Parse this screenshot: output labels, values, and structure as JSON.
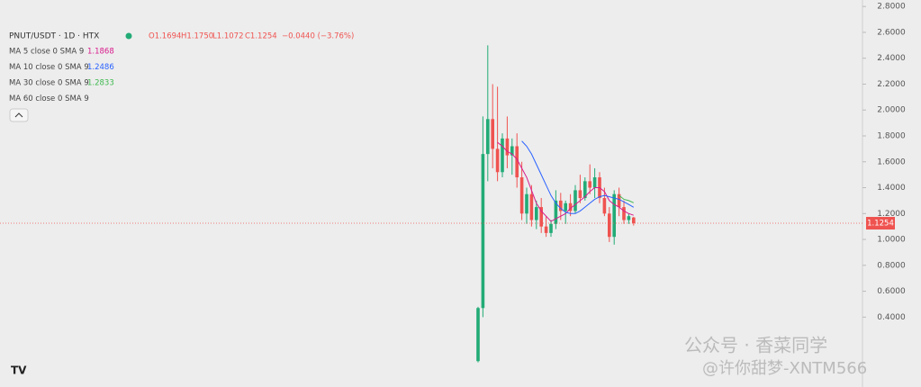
{
  "chart_data": {
    "type": "candlestick",
    "symbol": "PNUT/USDT · 1D · HTX",
    "ohlc_header": [
      "O1.1694",
      "H1.1750",
      "L1.1072",
      "C1.1254",
      "−0.0440 (−3.76%)"
    ],
    "up_color": "#22ab76",
    "down_color": "#ef5350",
    "candles": {
      "open": [
        0.06,
        0.47,
        1.66,
        1.93,
        1.7,
        1.52,
        1.78,
        1.65,
        1.72,
        1.48,
        1.2,
        1.35,
        1.15,
        1.25,
        1.1,
        1.05,
        1.12,
        1.3,
        1.22,
        1.28,
        1.22,
        1.38,
        1.32,
        1.45,
        1.4,
        1.48,
        1.32,
        1.2,
        1.02,
        1.35,
        1.25,
        1.15,
        1.1694
      ],
      "high": [
        0.48,
        1.95,
        2.5,
        2.2,
        2.18,
        1.82,
        1.95,
        1.78,
        1.82,
        1.6,
        1.4,
        1.42,
        1.3,
        1.32,
        1.18,
        1.15,
        1.38,
        1.36,
        1.3,
        1.35,
        1.42,
        1.5,
        1.48,
        1.58,
        1.55,
        1.52,
        1.4,
        1.25,
        1.38,
        1.4,
        1.3,
        1.2,
        1.175
      ],
      "low": [
        0.05,
        0.4,
        1.45,
        1.55,
        1.45,
        1.48,
        1.55,
        1.5,
        1.4,
        1.15,
        1.12,
        1.1,
        1.08,
        1.05,
        1.02,
        1.02,
        1.08,
        1.15,
        1.12,
        1.18,
        1.2,
        1.28,
        1.3,
        1.35,
        1.32,
        1.28,
        1.18,
        0.98,
        0.96,
        1.18,
        1.12,
        1.12,
        1.1072
      ],
      "close": [
        0.47,
        1.66,
        1.93,
        1.7,
        1.52,
        1.78,
        1.65,
        1.72,
        1.48,
        1.2,
        1.35,
        1.15,
        1.25,
        1.1,
        1.05,
        1.12,
        1.3,
        1.22,
        1.28,
        1.22,
        1.38,
        1.32,
        1.45,
        1.4,
        1.48,
        1.32,
        1.2,
        1.02,
        1.35,
        1.25,
        1.15,
        1.18,
        1.1254
      ]
    },
    "ma_lines": [
      {
        "name": "MA 5 close 0 SMA 9",
        "value": 1.1868,
        "color": "#d81b8c",
        "values": [
          null,
          null,
          null,
          null,
          1.75,
          1.72,
          1.68,
          1.66,
          1.62,
          1.55,
          1.48,
          1.38,
          1.28,
          1.22,
          1.18,
          1.14,
          1.16,
          1.18,
          1.2,
          1.24,
          1.27,
          1.3,
          1.33,
          1.37,
          1.4,
          1.4,
          1.37,
          1.3,
          1.27,
          1.25,
          1.22,
          1.2,
          1.1868
        ]
      },
      {
        "name": "MA 10 close 0 SMA 9",
        "value": 1.2486,
        "color": "#2962ff",
        "values": [
          null,
          null,
          null,
          null,
          null,
          null,
          null,
          null,
          null,
          1.76,
          1.72,
          1.66,
          1.58,
          1.5,
          1.42,
          1.34,
          1.28,
          1.24,
          1.21,
          1.2,
          1.2,
          1.22,
          1.25,
          1.28,
          1.31,
          1.33,
          1.34,
          1.33,
          1.32,
          1.31,
          1.29,
          1.27,
          1.2486
        ]
      },
      {
        "name": "MA 30 close 0 SMA 9",
        "value": 1.2833,
        "color": "#3fb950",
        "values": [
          null,
          null,
          null,
          null,
          null,
          null,
          null,
          null,
          null,
          null,
          null,
          null,
          null,
          null,
          null,
          null,
          null,
          null,
          null,
          null,
          null,
          null,
          null,
          null,
          null,
          null,
          null,
          null,
          null,
          1.34,
          1.31,
          1.3,
          1.2833
        ]
      },
      {
        "name": "MA 60 close 0 SMA 9"
      }
    ],
    "last_price": 1.1254,
    "ylim": [
      -0.14,
      2.85
    ],
    "yticks": [
      {
        "value": 0.4,
        "label": "0.4000"
      },
      {
        "value": 0.6,
        "label": "0.6000"
      },
      {
        "value": 0.8,
        "label": "0.8000"
      },
      {
        "value": 1.0,
        "label": "1.0000"
      },
      {
        "value": 1.2,
        "label": "1.2000"
      },
      {
        "value": 1.4,
        "label": "1.4000"
      },
      {
        "value": 1.6,
        "label": "1.6000"
      },
      {
        "value": 1.8,
        "label": "1.8000"
      },
      {
        "value": 2.0,
        "label": "2.0000"
      },
      {
        "value": 2.2,
        "label": "2.2000"
      },
      {
        "value": 2.4,
        "label": "2.4000"
      },
      {
        "value": 2.6,
        "label": "2.6000"
      },
      {
        "value": 2.8,
        "label": "2.8000"
      }
    ],
    "watermark": [
      "公众号 · 香菜同学",
      "@许你甜梦-XNTM566"
    ],
    "logo": "TV"
  }
}
